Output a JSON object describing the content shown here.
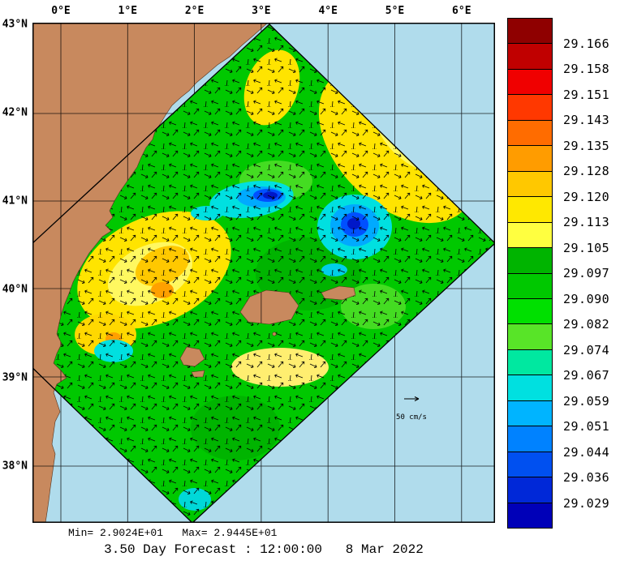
{
  "figure": {
    "title": "3.50 Day Forecast : 12:00:00   8 Mar 2022",
    "stats": "Min= 2.9024E+01   Max= 2.9445E+01",
    "vector_scale_label": "50 cm/s"
  },
  "axes": {
    "lon_labels": [
      "0°E",
      "1°E",
      "2°E",
      "3°E",
      "4°E",
      "5°E",
      "6°E"
    ],
    "lat_labels": [
      "43°N",
      "42°N",
      "41°N",
      "40°N",
      "39°N",
      "38°N"
    ]
  },
  "colorbar": {
    "labels": [
      "29.166",
      "29.158",
      "29.151",
      "29.143",
      "29.135",
      "29.128",
      "29.120",
      "29.113",
      "29.105",
      "29.097",
      "29.090",
      "29.082",
      "29.074",
      "29.067",
      "29.059",
      "29.051",
      "29.044",
      "29.036",
      "29.029"
    ],
    "colors": [
      "#8f0000",
      "#c00000",
      "#f00000",
      "#ff3800",
      "#ff6c00",
      "#ff9c00",
      "#ffc800",
      "#ffe800",
      "#ffff40",
      "#00b400",
      "#00c800",
      "#00e000",
      "#58e428",
      "#00e8a0",
      "#00e0e0",
      "#00b4ff",
      "#0082ff",
      "#0050f0",
      "#0028d8",
      "#0000b8"
    ],
    "min_value": "29.029",
    "max_value": "29.166"
  },
  "map": {
    "sea_color": "#b0dcec",
    "land_color": "#c8895e",
    "field_base_color": "#00c800"
  }
}
